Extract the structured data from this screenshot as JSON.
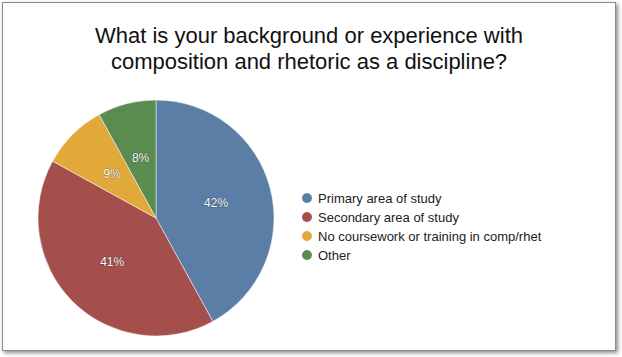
{
  "chart_data": {
    "type": "pie",
    "title": "What is your background or experience with\ncomposition and rhetoric as a discipline?",
    "categories": [
      "Primary area of study",
      "Secondary area of study",
      "No coursework or training in comp/rhet",
      "Other"
    ],
    "values": [
      42,
      41,
      9,
      8
    ],
    "value_labels": [
      "42%",
      "41%",
      "9%",
      "8%"
    ],
    "colors": [
      "#5b7ea6",
      "#a44f4c",
      "#e1a83a",
      "#5a8b4f"
    ],
    "data_labels": true,
    "legend": "right"
  }
}
